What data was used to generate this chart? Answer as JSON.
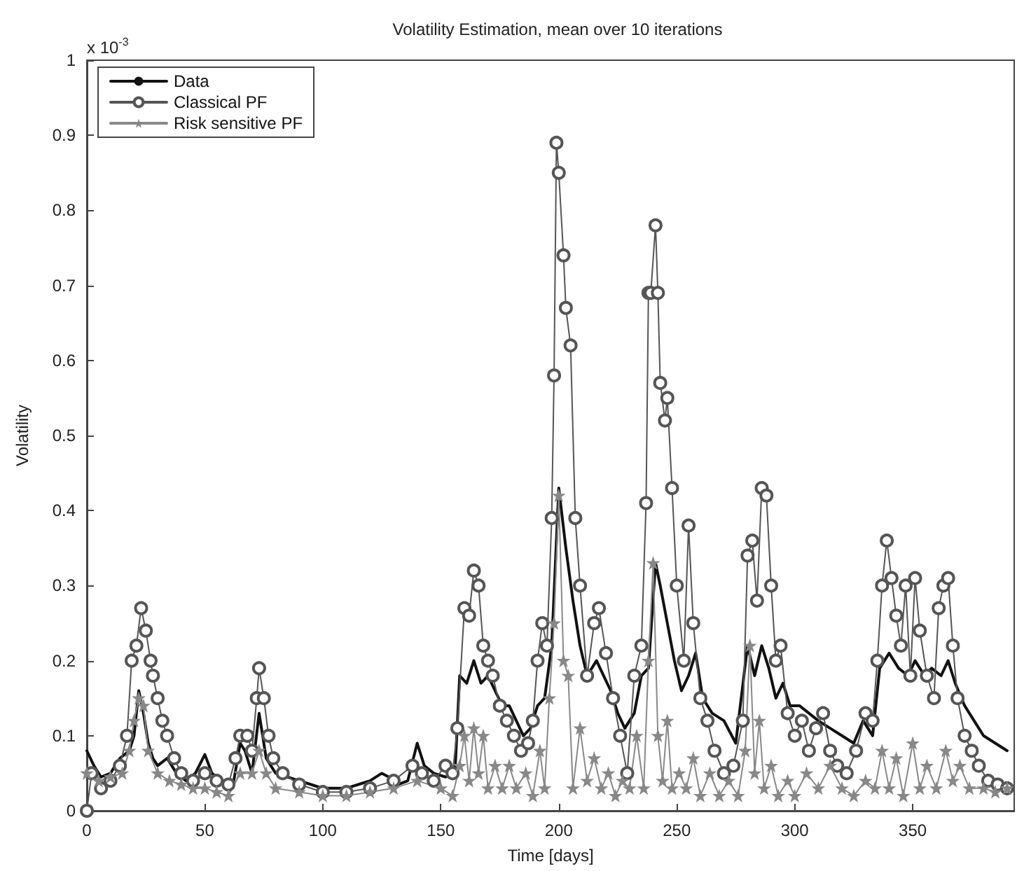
{
  "chart_data": {
    "type": "line",
    "title": "Volatility Estimation, mean over 10 iterations",
    "xlabel": "Time [days]",
    "ylabel": "Volatility",
    "annotations": [
      "x 10$^{-3}$"
    ],
    "xlim": [
      0,
      393
    ],
    "xticks": [
      0,
      50,
      100,
      150,
      200,
      250,
      300,
      350
    ],
    "ylim": [
      0,
      1
    ],
    "yticks": [
      0,
      0.1,
      0.2,
      0.3,
      0.4,
      0.5,
      0.6,
      0.7,
      0.8,
      0.9,
      1
    ],
    "grid": false,
    "legend": "top left",
    "line_style": "solid",
    "series": [
      {
        "name": "Data",
        "color": "#111111",
        "marker": "none",
        "x": [
          0,
          3,
          6,
          10,
          14,
          18,
          20,
          22,
          24,
          26,
          28,
          30,
          34,
          38,
          42,
          46,
          50,
          53,
          57,
          62,
          65,
          67,
          70,
          73,
          76,
          80,
          85,
          90,
          95,
          100,
          105,
          110,
          115,
          120,
          125,
          128,
          132,
          136,
          140,
          143,
          147,
          152,
          156,
          158,
          161,
          164,
          167,
          170,
          173,
          176,
          179,
          182,
          185,
          188,
          191,
          194,
          197,
          200,
          203,
          206,
          209,
          212,
          216,
          219,
          222,
          225,
          228,
          232,
          235,
          238,
          241,
          243,
          246,
          249,
          252,
          255,
          258,
          261,
          265,
          270,
          275,
          280,
          283,
          286,
          289,
          292,
          295,
          298,
          302,
          306,
          310,
          315,
          320,
          325,
          329,
          333,
          336,
          340,
          344,
          348,
          351,
          355,
          358,
          362,
          365,
          368,
          372,
          376,
          380,
          385,
          390
        ],
        "values": [
          0.08,
          0.06,
          0.045,
          0.05,
          0.07,
          0.08,
          0.1,
          0.16,
          0.13,
          0.09,
          0.07,
          0.06,
          0.07,
          0.05,
          0.04,
          0.05,
          0.075,
          0.05,
          0.04,
          0.035,
          0.09,
          0.08,
          0.05,
          0.13,
          0.07,
          0.05,
          0.045,
          0.04,
          0.035,
          0.03,
          0.03,
          0.03,
          0.035,
          0.04,
          0.05,
          0.045,
          0.035,
          0.04,
          0.09,
          0.06,
          0.05,
          0.045,
          0.05,
          0.18,
          0.17,
          0.2,
          0.17,
          0.18,
          0.16,
          0.14,
          0.14,
          0.12,
          0.1,
          0.11,
          0.14,
          0.15,
          0.22,
          0.43,
          0.35,
          0.28,
          0.22,
          0.18,
          0.2,
          0.18,
          0.16,
          0.13,
          0.11,
          0.13,
          0.18,
          0.19,
          0.33,
          0.3,
          0.25,
          0.2,
          0.16,
          0.18,
          0.21,
          0.15,
          0.13,
          0.12,
          0.09,
          0.22,
          0.18,
          0.22,
          0.19,
          0.15,
          0.17,
          0.14,
          0.14,
          0.13,
          0.12,
          0.11,
          0.1,
          0.09,
          0.12,
          0.1,
          0.19,
          0.21,
          0.19,
          0.18,
          0.2,
          0.18,
          0.19,
          0.18,
          0.2,
          0.17,
          0.14,
          0.12,
          0.1,
          0.09,
          0.08
        ]
      },
      {
        "name": "Classical PF",
        "color": "#555555",
        "marker": "circle",
        "x": [
          0,
          2,
          6,
          10,
          14,
          17,
          19,
          21,
          23,
          25,
          27,
          28,
          30,
          32,
          34,
          37,
          40,
          45,
          50,
          55,
          60,
          63,
          65,
          68,
          70,
          72,
          73,
          75,
          77,
          79,
          83,
          90,
          100,
          110,
          120,
          130,
          138,
          142,
          147,
          152,
          155,
          157,
          160,
          162,
          164,
          166,
          168,
          170,
          172,
          175,
          178,
          181,
          184,
          187,
          189,
          191,
          193,
          195,
          197,
          198,
          199,
          200,
          202,
          203,
          205,
          207,
          209,
          212,
          215,
          217,
          220,
          223,
          226,
          229,
          232,
          235,
          237,
          238,
          239,
          241,
          242,
          243,
          245,
          246,
          248,
          250,
          253,
          255,
          257,
          260,
          263,
          266,
          270,
          274,
          278,
          280,
          282,
          284,
          286,
          288,
          290,
          292,
          294,
          297,
          300,
          303,
          306,
          309,
          312,
          315,
          318,
          322,
          326,
          330,
          333,
          335,
          337,
          339,
          341,
          343,
          345,
          347,
          349,
          351,
          353,
          356,
          359,
          361,
          363,
          365,
          367,
          369,
          372,
          375,
          378,
          382,
          386,
          390
        ],
        "values": [
          0,
          0.05,
          0.03,
          0.04,
          0.06,
          0.1,
          0.2,
          0.22,
          0.27,
          0.24,
          0.2,
          0.18,
          0.15,
          0.12,
          0.1,
          0.07,
          0.05,
          0.04,
          0.05,
          0.04,
          0.035,
          0.07,
          0.1,
          0.1,
          0.08,
          0.15,
          0.19,
          0.15,
          0.1,
          0.07,
          0.05,
          0.035,
          0.025,
          0.025,
          0.03,
          0.04,
          0.06,
          0.05,
          0.04,
          0.06,
          0.05,
          0.11,
          0.27,
          0.26,
          0.32,
          0.3,
          0.22,
          0.2,
          0.18,
          0.14,
          0.12,
          0.1,
          0.08,
          0.09,
          0.12,
          0.2,
          0.25,
          0.22,
          0.39,
          0.58,
          0.89,
          0.85,
          0.74,
          0.67,
          0.62,
          0.39,
          0.3,
          0.18,
          0.25,
          0.27,
          0.21,
          0.15,
          0.1,
          0.05,
          0.18,
          0.22,
          0.41,
          0.69,
          0.69,
          0.78,
          0.69,
          0.57,
          0.52,
          0.55,
          0.43,
          0.3,
          0.2,
          0.38,
          0.25,
          0.15,
          0.12,
          0.08,
          0.05,
          0.06,
          0.12,
          0.34,
          0.36,
          0.28,
          0.43,
          0.42,
          0.3,
          0.2,
          0.22,
          0.13,
          0.1,
          0.12,
          0.08,
          0.11,
          0.13,
          0.08,
          0.06,
          0.05,
          0.08,
          0.13,
          0.12,
          0.2,
          0.3,
          0.36,
          0.31,
          0.26,
          0.22,
          0.3,
          0.18,
          0.31,
          0.24,
          0.18,
          0.15,
          0.27,
          0.3,
          0.31,
          0.22,
          0.15,
          0.1,
          0.08,
          0.06,
          0.04,
          0.035,
          0.03
        ]
      },
      {
        "name": "Risk sensitive PF",
        "color": "#888888",
        "marker": "star",
        "x": [
          0,
          5,
          10,
          15,
          18,
          20,
          22,
          24,
          26,
          30,
          35,
          40,
          45,
          50,
          55,
          60,
          65,
          70,
          73,
          76,
          80,
          90,
          100,
          110,
          120,
          130,
          140,
          150,
          155,
          158,
          160,
          162,
          164,
          166,
          168,
          170,
          173,
          176,
          179,
          182,
          186,
          189,
          192,
          194,
          196,
          198,
          200,
          202,
          204,
          206,
          209,
          212,
          215,
          218,
          221,
          224,
          227,
          230,
          233,
          236,
          238,
          240,
          242,
          244,
          246,
          248,
          251,
          254,
          257,
          260,
          264,
          268,
          272,
          276,
          279,
          281,
          283,
          285,
          287,
          290,
          293,
          297,
          300,
          305,
          310,
          315,
          320,
          325,
          330,
          334,
          337,
          340,
          343,
          346,
          350,
          353,
          356,
          360,
          364,
          367,
          370,
          374,
          380,
          385,
          390
        ],
        "values": [
          0.05,
          0.04,
          0.045,
          0.05,
          0.08,
          0.12,
          0.15,
          0.14,
          0.08,
          0.05,
          0.04,
          0.035,
          0.03,
          0.03,
          0.025,
          0.02,
          0.05,
          0.05,
          0.08,
          0.05,
          0.03,
          0.025,
          0.02,
          0.02,
          0.025,
          0.03,
          0.04,
          0.03,
          0.02,
          0.06,
          0.1,
          0.04,
          0.11,
          0.05,
          0.1,
          0.03,
          0.06,
          0.03,
          0.06,
          0.03,
          0.05,
          0.02,
          0.08,
          0.03,
          0.15,
          0.25,
          0.42,
          0.2,
          0.18,
          0.03,
          0.11,
          0.04,
          0.07,
          0.03,
          0.05,
          0.02,
          0.04,
          0.03,
          0.1,
          0.03,
          0.2,
          0.33,
          0.1,
          0.04,
          0.12,
          0.03,
          0.05,
          0.03,
          0.07,
          0.02,
          0.05,
          0.02,
          0.04,
          0.02,
          0.08,
          0.22,
          0.05,
          0.12,
          0.03,
          0.06,
          0.02,
          0.04,
          0.02,
          0.05,
          0.03,
          0.06,
          0.03,
          0.02,
          0.04,
          0.03,
          0.08,
          0.03,
          0.07,
          0.02,
          0.09,
          0.03,
          0.06,
          0.03,
          0.08,
          0.04,
          0.06,
          0.03,
          0.03,
          0.025,
          0.03
        ]
      }
    ]
  }
}
